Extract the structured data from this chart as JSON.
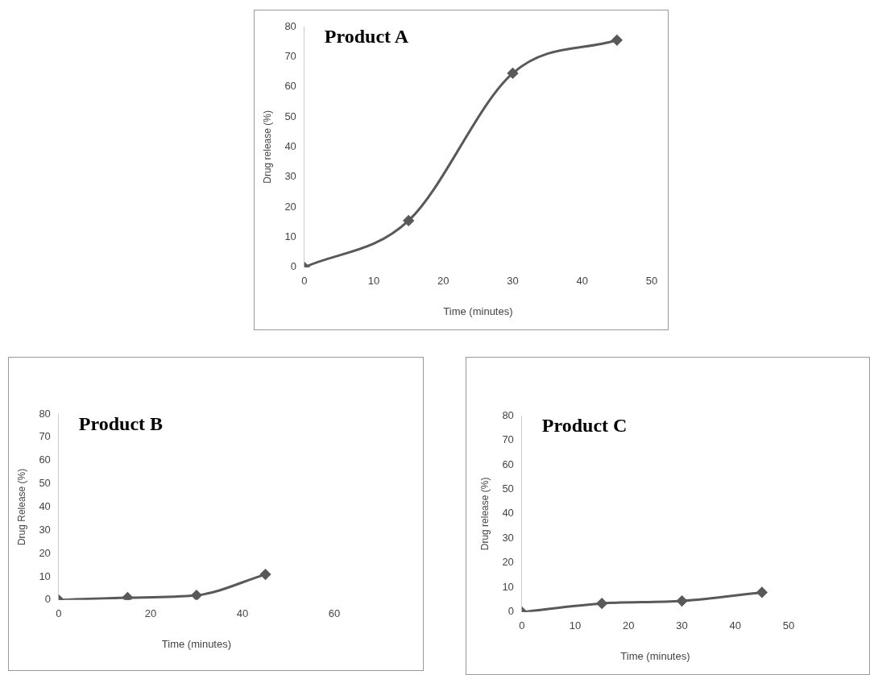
{
  "chart_data": [
    {
      "type": "line",
      "title": "Product A",
      "xlabel": "Time (minutes)",
      "ylabel": "Drug release (%)",
      "x": [
        0,
        15,
        30,
        45
      ],
      "series": [
        {
          "color": "#595959",
          "values": [
            0,
            15.5,
            64.5,
            75.5
          ]
        }
      ],
      "xlim": [
        0,
        50
      ],
      "xticks": [
        0,
        10,
        20,
        30,
        40,
        50
      ],
      "ylim": [
        0,
        80
      ],
      "yticks": [
        0,
        10,
        20,
        30,
        40,
        50,
        60,
        70,
        80
      ],
      "grid": false,
      "legend": false,
      "marker": "diamond",
      "line_style": "solid"
    },
    {
      "type": "line",
      "title": "Product B",
      "xlabel": "Time (minutes)",
      "ylabel": "Drug Release (%)",
      "x": [
        0,
        15,
        30,
        45
      ],
      "series": [
        {
          "color": "#595959",
          "values": [
            0,
            1,
            2,
            11
          ]
        }
      ],
      "xlim": [
        0,
        60
      ],
      "xticks": [
        0,
        20,
        40,
        60
      ],
      "ylim": [
        0,
        80
      ],
      "yticks": [
        0,
        10,
        20,
        30,
        40,
        50,
        60,
        70,
        80
      ],
      "grid": false,
      "legend": false,
      "marker": "diamond",
      "line_style": "solid"
    },
    {
      "type": "line",
      "title": "Product C",
      "xlabel": "Time (minutes)",
      "ylabel": "Drug release (%)",
      "x": [
        0,
        15,
        30,
        45
      ],
      "series": [
        {
          "color": "#595959",
          "values": [
            0,
            3.5,
            4.5,
            8
          ]
        }
      ],
      "xlim": [
        0,
        50
      ],
      "xticks": [
        0,
        10,
        20,
        30,
        40,
        50
      ],
      "ylim": [
        0,
        80
      ],
      "yticks": [
        0,
        10,
        20,
        30,
        40,
        50,
        60,
        70,
        80
      ],
      "grid": false,
      "legend": false,
      "marker": "diamond",
      "line_style": "solid"
    }
  ]
}
